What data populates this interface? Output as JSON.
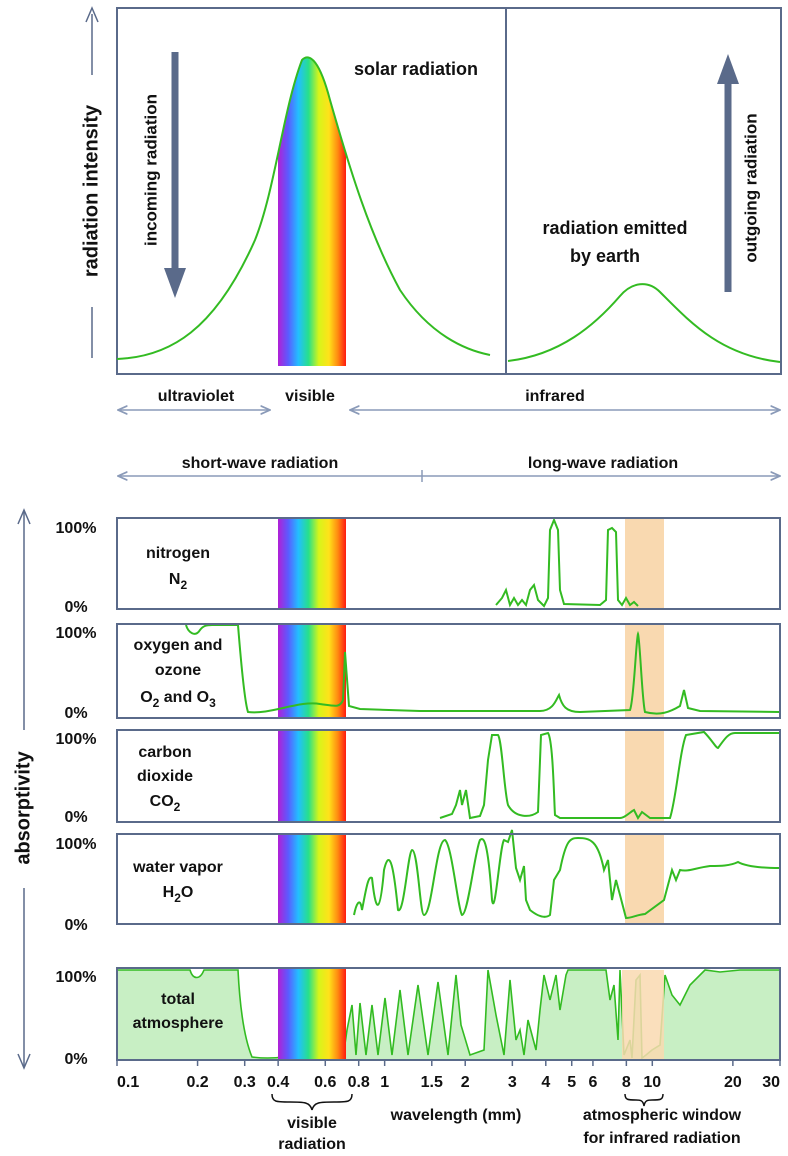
{
  "top_panel": {
    "y_axis_label": "radiation intensity",
    "incoming_label": "incoming radiation",
    "outgoing_label": "outgoing radiation",
    "solar_label": "solar radiation",
    "earth_label_line1": "radiation emitted",
    "earth_label_line2": "by earth"
  },
  "bands": {
    "ultraviolet": "ultraviolet",
    "visible": "visible",
    "infrared": "infrared",
    "short_wave": "short-wave radiation",
    "long_wave": "long-wave radiation"
  },
  "absorptivity_label": "absorptivity",
  "panels": [
    {
      "id": "nitrogen",
      "line1": "nitrogen",
      "formula": [
        {
          "t": "N"
        },
        {
          "t": "2",
          "sub": true
        }
      ],
      "top_tick": "100%",
      "bottom_tick": "0%"
    },
    {
      "id": "oxygen",
      "line1": "oxygen and",
      "line2": "ozone",
      "formula": [
        {
          "t": "O"
        },
        {
          "t": "2",
          "sub": true
        },
        {
          "t": " and O"
        },
        {
          "t": "3",
          "sub": true
        }
      ],
      "top_tick": "100%",
      "bottom_tick": "0%"
    },
    {
      "id": "co2",
      "line1": "carbon",
      "line2": "dioxide",
      "formula": [
        {
          "t": "CO"
        },
        {
          "t": "2",
          "sub": true
        }
      ],
      "top_tick": "100%",
      "bottom_tick": "0%"
    },
    {
      "id": "water",
      "line1": "water vapor",
      "formula": [
        {
          "t": "H"
        },
        {
          "t": "2",
          "sub": true
        },
        {
          "t": "O"
        }
      ],
      "top_tick": "100%",
      "bottom_tick": "0%"
    },
    {
      "id": "total",
      "line1": "total",
      "line2": "atmosphere",
      "top_tick": "100%",
      "bottom_tick": "0%"
    }
  ],
  "x_axis": {
    "ticks": [
      {
        "label": "0.1",
        "x": 0.1
      },
      {
        "label": "0.2",
        "x": 0.2
      },
      {
        "label": "0.3",
        "x": 0.3
      },
      {
        "label": "0.4",
        "x": 0.4
      },
      {
        "label": "0.6",
        "x": 0.6
      },
      {
        "label": "0.8",
        "x": 0.8
      },
      {
        "label": "1",
        "x": 1
      },
      {
        "label": "1.5",
        "x": 1.5
      },
      {
        "label": "2",
        "x": 2
      },
      {
        "label": "3",
        "x": 3
      },
      {
        "label": "4",
        "x": 4
      },
      {
        "label": "5",
        "x": 5
      },
      {
        "label": "6",
        "x": 6
      },
      {
        "label": "8",
        "x": 8
      },
      {
        "label": "10",
        "x": 10
      },
      {
        "label": "20",
        "x": 20
      },
      {
        "label": "30",
        "x": 30
      }
    ],
    "label": "wavelength (mm)",
    "visible_bracket_line1": "visible",
    "visible_bracket_line2": "radiation",
    "window_bracket_line1": "atmospheric window",
    "window_bracket_line2": "for infrared radiation"
  },
  "colors": {
    "frame": "#5a6a8a",
    "curve": "#33bb22",
    "total_fill": "#c8efc4",
    "window": "#f9d9b0",
    "big_arrow": "#5a6a8a"
  }
}
